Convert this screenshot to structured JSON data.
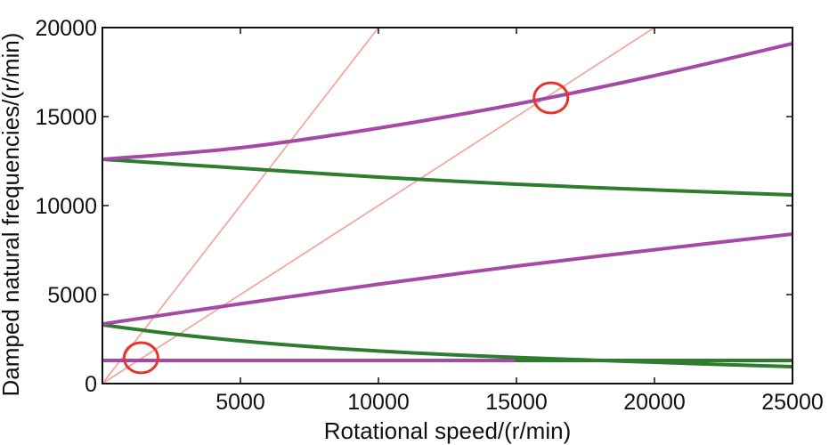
{
  "chart_data": {
    "type": "line",
    "title": "",
    "xlabel": "Rotational speed/(r/min)",
    "ylabel": "Damped natural frequencies/(r/min)",
    "xlim": [
      0,
      25000
    ],
    "ylim": [
      0,
      20000
    ],
    "xticks": [
      5000,
      10000,
      15000,
      20000,
      25000
    ],
    "xtick_labels": [
      "5000",
      "10000",
      "15000",
      "20000",
      "25000"
    ],
    "yticks": [
      0,
      5000,
      10000,
      15000,
      20000
    ],
    "ytick_labels": [
      "0",
      "5000",
      "10000",
      "15000",
      "20000"
    ],
    "grid": false,
    "legend": "none",
    "colors": {
      "forward_whirl": "#a44aa4",
      "backward_whirl": "#2e7d2e",
      "excitation_line": "#f2aaa0",
      "circle": "#e8352a",
      "axis": "#111111"
    },
    "series": [
      {
        "kind": "forward_whirl",
        "x": [
          0,
          25000
        ],
        "y": [
          1300,
          1300
        ]
      },
      {
        "kind": "backward_whirl",
        "x": [
          0,
          2500,
          5000,
          7500,
          10000,
          12500,
          15000,
          17500,
          20000,
          22500,
          25000
        ],
        "y": [
          3300,
          2800,
          2400,
          2080,
          1830,
          1630,
          1470,
          1330,
          1200,
          1070,
          950
        ]
      },
      {
        "kind": "forward_whirl",
        "x": [
          0,
          5000,
          10000,
          15000,
          20000,
          25000
        ],
        "y": [
          3350,
          4480,
          5580,
          6600,
          7520,
          8400
        ]
      },
      {
        "kind": "backward_whirl",
        "x": [
          0,
          5000,
          10000,
          15000,
          20000,
          25000
        ],
        "y": [
          12600,
          12100,
          11600,
          11200,
          10880,
          10600
        ]
      },
      {
        "kind": "forward_whirl",
        "x": [
          0,
          5000,
          10000,
          15000,
          20000,
          25000
        ],
        "y": [
          12600,
          13250,
          14350,
          15700,
          17300,
          19100
        ]
      },
      {
        "kind": "backward_whirl",
        "x": [
          15000,
          25000
        ],
        "y": [
          1300,
          1300
        ]
      },
      {
        "kind": "excitation_line",
        "x": [
          0,
          10000
        ],
        "y": [
          0,
          20000
        ]
      },
      {
        "kind": "excitation_line",
        "x": [
          0,
          20000
        ],
        "y": [
          0,
          20000
        ]
      }
    ],
    "annotations": [
      {
        "shape": "circle",
        "x": 16250,
        "y": 16050
      },
      {
        "shape": "circle",
        "x": 1400,
        "y": 1450
      }
    ]
  }
}
